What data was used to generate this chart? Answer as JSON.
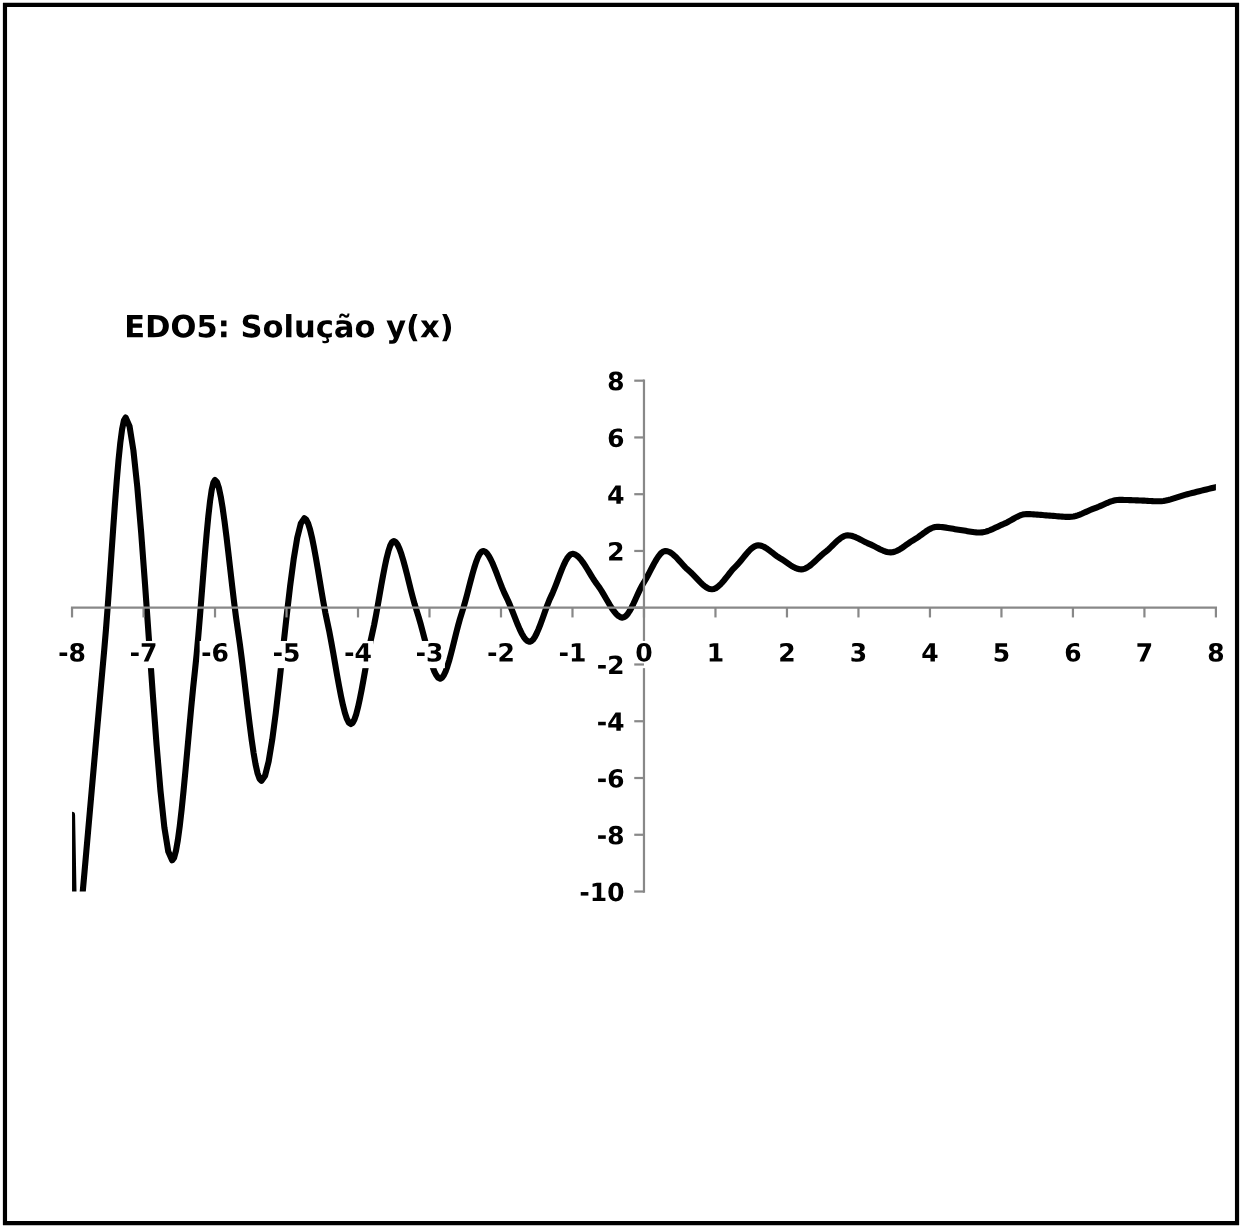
{
  "chart_data": {
    "type": "line",
    "title": "EDO5: Solução y(x)",
    "series": [
      {
        "color": "#000000",
        "x": [
          -8,
          -7.98,
          null,
          -7.85,
          -7.55,
          -7.25,
          -6.6,
          -6.28,
          -6.0,
          -5.68,
          -5.35,
          -4.75,
          -4.43,
          -4.1,
          -3.8,
          -3.5,
          -3.18,
          -2.85,
          -2.55,
          -2.25,
          -1.93,
          -1.6,
          -1.3,
          -1.0,
          -0.65,
          -0.3,
          0.0,
          0.3,
          0.63,
          0.95,
          1.28,
          1.6,
          1.9,
          2.2,
          2.53,
          2.85,
          3.15,
          3.45,
          3.78,
          4.1,
          4.4,
          4.7,
          5.03,
          5.35,
          5.65,
          5.95,
          6.3,
          6.65,
          6.93,
          7.2,
          7.6,
          8.0
        ],
        "values": [
          -7.3,
          -10,
          null,
          -10,
          -1.5,
          6.7,
          -8.9,
          -2.2,
          4.5,
          -0.8,
          -6.1,
          3.15,
          -0.5,
          -4.1,
          -0.9,
          2.35,
          -0.1,
          -2.5,
          -0.2,
          2.0,
          0.4,
          -1.2,
          0.4,
          1.9,
          0.8,
          -0.35,
          0.9,
          2.0,
          1.3,
          0.65,
          1.45,
          2.2,
          1.75,
          1.35,
          1.95,
          2.55,
          2.25,
          1.95,
          2.4,
          2.85,
          2.75,
          2.65,
          2.95,
          3.3,
          3.25,
          3.2,
          3.5,
          3.8,
          3.78,
          3.75,
          4.0,
          4.25
        ]
      }
    ],
    "xlim": [
      -8,
      8
    ],
    "ylim": [
      -10,
      8
    ],
    "xticks": [
      -8,
      -7,
      -6,
      -5,
      -4,
      -3,
      -2,
      -1,
      0,
      1,
      2,
      3,
      4,
      5,
      6,
      7,
      8
    ],
    "yticks": [
      -10,
      -8,
      -6,
      -4,
      -2,
      {
        "value": 0,
        "label": null
      },
      2,
      4,
      6,
      8
    ],
    "grid": false,
    "marker": "none",
    "line_style": "solid"
  }
}
